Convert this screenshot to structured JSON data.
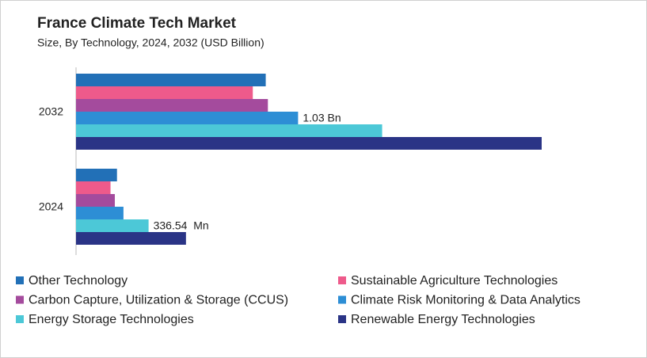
{
  "chart_data": {
    "type": "hbar",
    "title": "France Climate Tech Market",
    "subtitle": "Size, By Technology, 2024, 2032 (USD Billion)",
    "categories": [
      "2032",
      "2024"
    ],
    "series": [
      {
        "name": "Other Technology",
        "color": "#2270b7",
        "values": [
          0.88,
          0.19
        ]
      },
      {
        "name": "Sustainable Agriculture Technologies",
        "color": "#ee5a8b",
        "values": [
          0.82,
          0.16
        ]
      },
      {
        "name": "Carbon Capture, Utilization & Storage (CCUS)",
        "color": "#a44b9d",
        "values": [
          0.89,
          0.18
        ]
      },
      {
        "name": "Climate Risk Monitoring & Data Analytics",
        "color": "#2d8ed5",
        "values": [
          1.03,
          0.22
        ],
        "value_labels": [
          "1.03 Bn",
          null
        ]
      },
      {
        "name": "Energy Storage Technologies",
        "color": "#4cc8d7",
        "values": [
          1.42,
          0.33654
        ],
        "value_labels": [
          null,
          "336.54  Mn"
        ]
      },
      {
        "name": "Renewable Energy Technologies",
        "color": "#2a3486",
        "values": [
          2.16,
          0.51
        ]
      }
    ]
  }
}
